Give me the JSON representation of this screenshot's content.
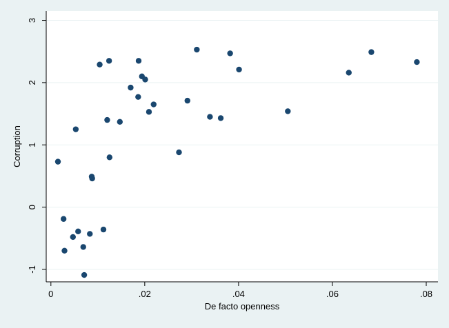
{
  "colors": {
    "outer_background": "#eaf2f3",
    "plot_background": "#ffffff",
    "gridline": "#eaf2f3",
    "marker": "#1a476f",
    "axis": "#000000"
  },
  "chart_data": {
    "type": "scatter",
    "title": "",
    "xlabel": "De facto openness",
    "ylabel": "Corruption",
    "xlim": [
      -0.001,
      0.0825
    ],
    "ylim": [
      -1.2,
      3.15
    ],
    "xticks": [
      0,
      0.02,
      0.04,
      0.06,
      0.08
    ],
    "xtick_labels": [
      "0",
      ".02",
      ".04",
      ".06",
      ".08"
    ],
    "yticks": [
      -1,
      0,
      1,
      2,
      3
    ],
    "ytick_labels": [
      "-1",
      "0",
      "1",
      "2",
      "3"
    ],
    "grid": "horizontal",
    "legend": "none",
    "marker_color": "#1a476f",
    "points": [
      {
        "x": 0.0015,
        "y": 0.73
      },
      {
        "x": 0.0027,
        "y": -0.19
      },
      {
        "x": 0.0029,
        "y": -0.7
      },
      {
        "x": 0.0047,
        "y": -0.48
      },
      {
        "x": 0.0053,
        "y": 1.25
      },
      {
        "x": 0.0058,
        "y": -0.39
      },
      {
        "x": 0.0069,
        "y": -0.64
      },
      {
        "x": 0.0071,
        "y": -1.09
      },
      {
        "x": 0.0083,
        "y": -0.43
      },
      {
        "x": 0.0087,
        "y": 0.49
      },
      {
        "x": 0.0088,
        "y": 0.46
      },
      {
        "x": 0.0104,
        "y": 2.29
      },
      {
        "x": 0.0112,
        "y": -0.36
      },
      {
        "x": 0.012,
        "y": 1.4
      },
      {
        "x": 0.0124,
        "y": 2.35
      },
      {
        "x": 0.0125,
        "y": 0.8
      },
      {
        "x": 0.0147,
        "y": 1.37
      },
      {
        "x": 0.017,
        "y": 1.92
      },
      {
        "x": 0.0186,
        "y": 1.77
      },
      {
        "x": 0.0187,
        "y": 2.35
      },
      {
        "x": 0.0194,
        "y": 2.1
      },
      {
        "x": 0.0201,
        "y": 2.05
      },
      {
        "x": 0.0209,
        "y": 1.53
      },
      {
        "x": 0.0219,
        "y": 1.65
      },
      {
        "x": 0.0273,
        "y": 0.88
      },
      {
        "x": 0.0291,
        "y": 1.71
      },
      {
        "x": 0.0311,
        "y": 2.53
      },
      {
        "x": 0.0339,
        "y": 1.45
      },
      {
        "x": 0.0362,
        "y": 1.43
      },
      {
        "x": 0.0382,
        "y": 2.47
      },
      {
        "x": 0.0401,
        "y": 2.21
      },
      {
        "x": 0.0505,
        "y": 1.54
      },
      {
        "x": 0.0635,
        "y": 2.16
      },
      {
        "x": 0.0683,
        "y": 2.49
      },
      {
        "x": 0.078,
        "y": 2.33
      }
    ]
  }
}
